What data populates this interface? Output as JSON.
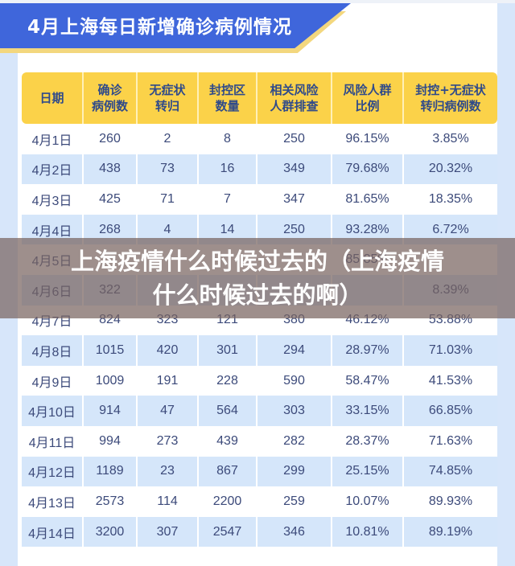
{
  "banner": {
    "title": "4月上海每日新增确诊病例情况",
    "color": "#3f66db",
    "shadow_color": "#f3d77e"
  },
  "table": {
    "header_color": "#fbd249",
    "columns": [
      {
        "line1": "日期",
        "line2": ""
      },
      {
        "line1": "确诊",
        "line2": "病例数"
      },
      {
        "line1": "无症状",
        "line2": "转归"
      },
      {
        "line1": "封控区",
        "line2": "数量"
      },
      {
        "line1": "相关风险",
        "line2": "人群排查"
      },
      {
        "line1": "风险人群",
        "line2": "比例"
      },
      {
        "line1": "封控+无症状",
        "line2": "转归病例数"
      }
    ],
    "rows": [
      [
        "4月1日",
        "260",
        "2",
        "8",
        "250",
        "96.15%",
        "3.85%"
      ],
      [
        "4月2日",
        "438",
        "73",
        "16",
        "349",
        "79.68%",
        "20.32%"
      ],
      [
        "4月3日",
        "425",
        "71",
        "7",
        "347",
        "81.65%",
        "18.35%"
      ],
      [
        "4月4日",
        "268",
        "4",
        "14",
        "250",
        "93.28%",
        "6.72%"
      ],
      [
        "4月5日",
        "",
        "",
        "",
        "",
        "85.85%",
        ""
      ],
      [
        "4月6日",
        "322",
        "",
        "",
        "",
        "",
        "8.39%"
      ],
      [
        "4月7日",
        "824",
        "323",
        "121",
        "380",
        "46.12%",
        "53.88%"
      ],
      [
        "4月8日",
        "1015",
        "420",
        "301",
        "294",
        "28.97%",
        "71.03%"
      ],
      [
        "4月9日",
        "1009",
        "191",
        "228",
        "590",
        "58.47%",
        "41.53%"
      ],
      [
        "4月10日",
        "914",
        "47",
        "564",
        "303",
        "33.15%",
        "66.85%"
      ],
      [
        "4月11日",
        "994",
        "273",
        "439",
        "282",
        "28.37%",
        "71.63%"
      ],
      [
        "4月12日",
        "1189",
        "23",
        "867",
        "299",
        "25.15%",
        "74.85%"
      ],
      [
        "4月13日",
        "2573",
        "114",
        "2200",
        "259",
        "10.07%",
        "89.93%"
      ],
      [
        "4月14日",
        "3200",
        "307",
        "2547",
        "346",
        "10.81%",
        "89.19%"
      ]
    ]
  },
  "overlay": {
    "line1": "上海疫情什么时候过去的（上海疫情",
    "line2": "什么时候过去的啊）"
  }
}
